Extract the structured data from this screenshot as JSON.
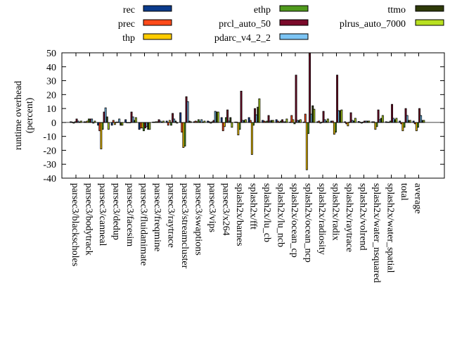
{
  "chart_data": {
    "type": "bar",
    "title": "",
    "xlabel": "",
    "ylabel": "runtime overhead\n(percent)",
    "ylabel_lines": [
      "runtime overhead",
      "(percent)"
    ],
    "ylim": [
      -40,
      50
    ],
    "yticks": [
      -40,
      -30,
      -20,
      -10,
      0,
      10,
      20,
      30,
      40,
      50
    ],
    "grid": false,
    "legend_position": "top",
    "categories": [
      "parsec3/blackscholes",
      "parsec3/bodytrack",
      "parsec3/canneal",
      "parsec3/dedup",
      "parsec3/facesim",
      "parsec3/fluidanimate",
      "parsec3/freqmine",
      "parsec3/raytrace",
      "parsec3/streamcluster",
      "parsec3/swaptions",
      "parsec3/vips",
      "parsec3/x264",
      "splash2x/barnes",
      "splash2x/fft",
      "splash2x/lu_cb",
      "splash2x/lu_ncb",
      "splash2x/ocean_cp",
      "splash2x/ocean_ncp",
      "splash2x/radiosity",
      "splash2x/radix",
      "splash2x/raytrace",
      "splash2x/volrend",
      "splash2x/water_nsquared",
      "splash2x/water_spatial",
      "total",
      "average"
    ],
    "series": [
      {
        "name": "rec",
        "color": "#0b3b8c",
        "values": [
          0.5,
          0.5,
          -2,
          -2,
          2,
          -5,
          0.3,
          1,
          7,
          0.5,
          1,
          3.5,
          0.3,
          3.5,
          1.5,
          2,
          0.3,
          0.3,
          0.5,
          1,
          0.5,
          0.7,
          0.5,
          0.5,
          1,
          1
        ]
      },
      {
        "name": "prec",
        "color": "#ff4a1a",
        "values": [
          0.3,
          0.5,
          -6,
          1.5,
          0,
          -4,
          0.3,
          -2,
          -7,
          1,
          0.5,
          -6,
          0.3,
          1.5,
          1,
          1,
          5,
          6,
          1,
          1,
          -1,
          0.3,
          0.5,
          0.3,
          -1,
          -1
        ]
      },
      {
        "name": "thp",
        "color": "#ffcc00",
        "values": [
          -0.5,
          1,
          -19,
          -1.5,
          0,
          -4,
          0.5,
          1.5,
          -18,
          0.5,
          -0.5,
          -3,
          -9,
          -23,
          0.5,
          0.3,
          2,
          -34,
          -0.5,
          -8.5,
          -2.5,
          -0.5,
          -5,
          0.3,
          -6,
          -6
        ]
      },
      {
        "name": "ethp",
        "color": "#4f9a1c",
        "values": [
          0.5,
          2.5,
          -5,
          0.3,
          0,
          -6,
          0.5,
          -2,
          -17,
          2,
          0.5,
          3.5,
          -5,
          -2,
          1,
          1,
          -1,
          -8,
          0.3,
          -7,
          0.3,
          0.3,
          -3,
          1,
          -3.5,
          -3.5
        ]
      },
      {
        "name": "prcl_auto_50",
        "color": "#7a0a2a",
        "values": [
          2.5,
          2.5,
          7.5,
          0.3,
          7.5,
          -4,
          2,
          6.5,
          18.5,
          0.5,
          1.5,
          9,
          22.5,
          10,
          5,
          2,
          34,
          50,
          8,
          34,
          7,
          1,
          9,
          13,
          10,
          10
        ]
      },
      {
        "name": "pdarc_v4_2_2",
        "color": "#7cc4f4",
        "values": [
          1,
          2.5,
          10.5,
          2.5,
          4,
          -3,
          1,
          2.5,
          15,
          2,
          8,
          1,
          1.5,
          5.5,
          1,
          0.5,
          1.5,
          6,
          2,
          8.5,
          1.5,
          1,
          2,
          3,
          5,
          5
        ]
      },
      {
        "name": "ttmo",
        "color": "#2e3a08",
        "values": [
          0.3,
          -0.5,
          4,
          -2,
          1.5,
          -5,
          0.3,
          1,
          1,
          0.3,
          7.5,
          3.5,
          1.5,
          11,
          1.5,
          0.5,
          1.5,
          12,
          1,
          8.5,
          1,
          1,
          3,
          2,
          1.5,
          1.5
        ]
      },
      {
        "name": "plrus_auto_7000",
        "color": "#b8e020",
        "values": [
          1,
          1,
          -5,
          -2,
          3.5,
          -5,
          1,
          -0.5,
          0.5,
          1,
          7.5,
          -3.5,
          2,
          17,
          1.5,
          2.5,
          2,
          9.5,
          2.5,
          9,
          3,
          1,
          5,
          3,
          1.5,
          1.5
        ]
      }
    ]
  }
}
